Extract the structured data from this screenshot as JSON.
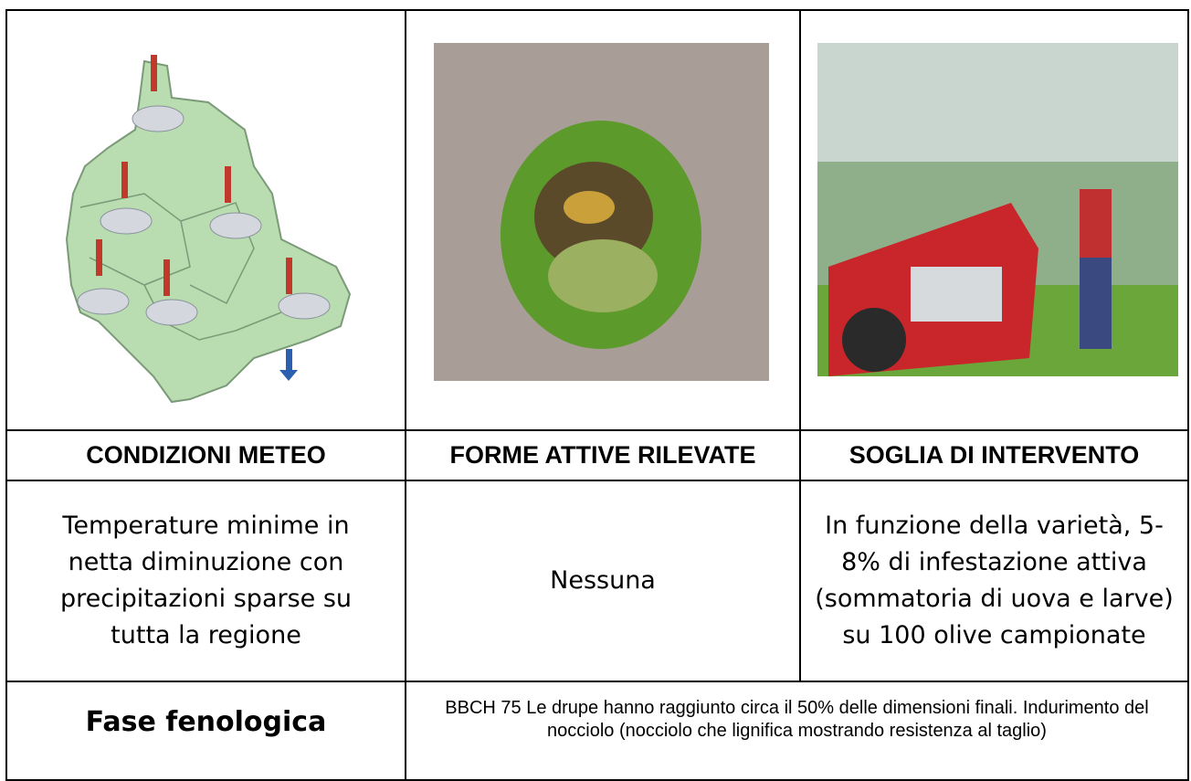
{
  "table": {
    "headers": [
      "CONDIZIONI METEO",
      "FORME ATTIVE RILEVATE",
      "SOGLIA DI INTERVENTO"
    ],
    "row": [
      "Temperature minime in netta diminuzione con precipitazioni sparse su tutta la regione",
      "Nessuna",
      "In funzione della varietà, 5-8% di infestazione attiva (sommatoria di uova e larve) su 100 olive campionate"
    ],
    "phase": {
      "label": "Fase fenologica",
      "description": "BBCH 75 Le drupe hanno raggiunto circa il 50% delle dimensioni finali. Indurimento del nocciolo (nocciolo che lignifica mostrando resistenza al taglio)"
    }
  }
}
